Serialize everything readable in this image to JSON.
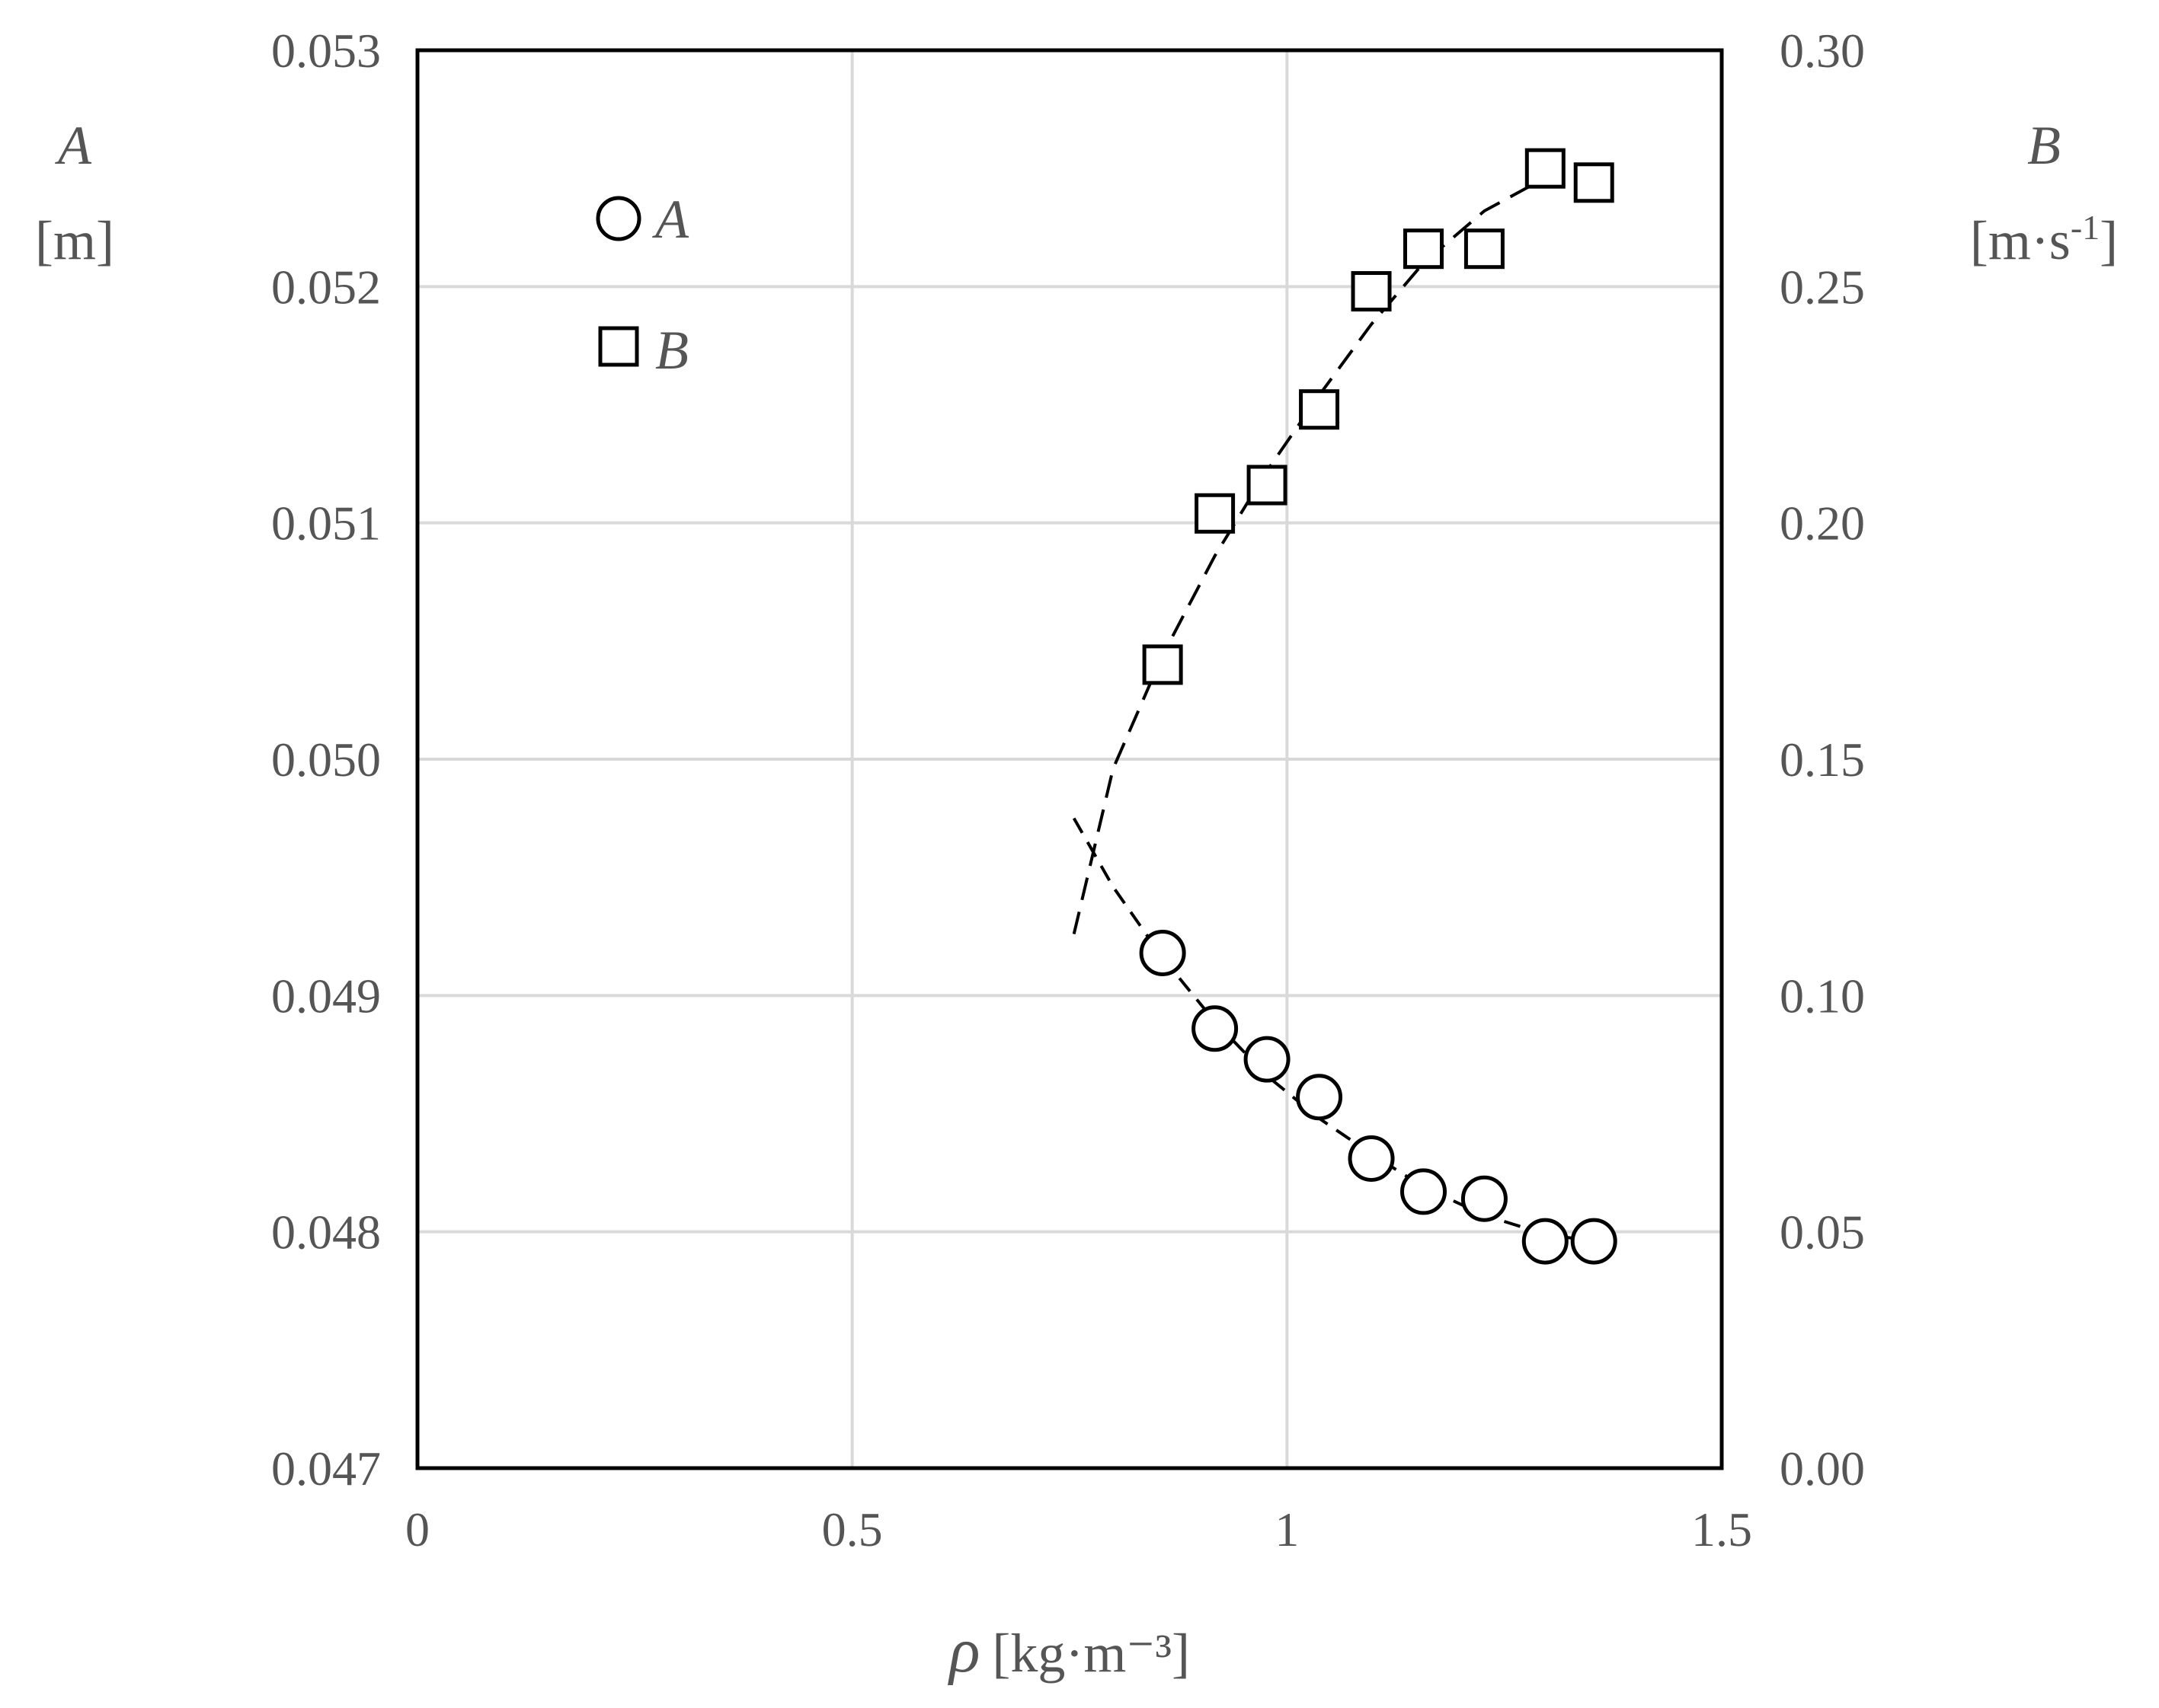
{
  "chart_data": {
    "type": "scatter",
    "x": {
      "label_symbol": "ρ",
      "label_units": "[kg·m⁻³]",
      "range": [
        0,
        1.5
      ],
      "ticks": [
        0,
        0.5,
        1,
        1.5
      ],
      "tick_labels": [
        "0",
        "0.5",
        "1",
        "1.5"
      ],
      "grid": true
    },
    "y_left": {
      "label_symbol": "A",
      "label_units": "[m]",
      "range": [
        0.047,
        0.053
      ],
      "ticks": [
        0.047,
        0.048,
        0.049,
        0.05,
        0.051,
        0.052,
        0.053
      ],
      "tick_labels": [
        "0.047",
        "0.048",
        "0.049",
        "0.050",
        "0.051",
        "0.052",
        "0.053"
      ],
      "grid": true
    },
    "y_right": {
      "label_symbol": "B",
      "label_units_main": "[m·s",
      "label_units_sup": "-1",
      "label_units_end": "]",
      "range": [
        0,
        0.3
      ],
      "ticks": [
        0,
        0.05,
        0.1,
        0.15,
        0.2,
        0.25,
        0.3
      ],
      "tick_labels": [
        "0.00",
        "0.05",
        "0.10",
        "0.15",
        "0.20",
        "0.25",
        "0.30"
      ]
    },
    "legend": {
      "position": "top-left",
      "entries": [
        {
          "name": "A",
          "marker": "circle"
        },
        {
          "name": "B",
          "marker": "square"
        }
      ]
    },
    "series": [
      {
        "name": "A",
        "axis": "left",
        "marker": "circle",
        "x": [
          0.857,
          0.917,
          0.977,
          1.037,
          1.097,
          1.157,
          1.227,
          1.297,
          1.353
        ],
        "y": [
          0.04918,
          0.04886,
          0.04873,
          0.04857,
          0.04831,
          0.04817,
          0.04814,
          0.04796,
          0.04796
        ],
        "fit": {
          "style": "dashed",
          "x": [
            0.755,
            0.8,
            0.857,
            0.917,
            0.977,
            1.037,
            1.097,
            1.157,
            1.227,
            1.297,
            1.353
          ],
          "y": [
            0.04975,
            0.04946,
            0.04916,
            0.04889,
            0.04866,
            0.04848,
            0.04833,
            0.04819,
            0.04807,
            0.04799,
            0.04796
          ]
        }
      },
      {
        "name": "B",
        "axis": "right",
        "marker": "square",
        "x": [
          0.857,
          0.917,
          0.977,
          1.037,
          1.097,
          1.157,
          1.227,
          1.297,
          1.353
        ],
        "y": [
          0.17,
          0.202,
          0.208,
          0.224,
          0.249,
          0.258,
          0.258,
          0.275,
          0.272
        ],
        "fit": {
          "style": "dashed",
          "x": [
            0.755,
            0.8,
            0.857,
            0.917,
            0.977,
            1.037,
            1.097,
            1.157,
            1.227,
            1.297,
            1.353
          ],
          "y": [
            0.113,
            0.148,
            0.172,
            0.193,
            0.211,
            0.227,
            0.242,
            0.255,
            0.266,
            0.273,
            0.272
          ]
        }
      }
    ]
  }
}
